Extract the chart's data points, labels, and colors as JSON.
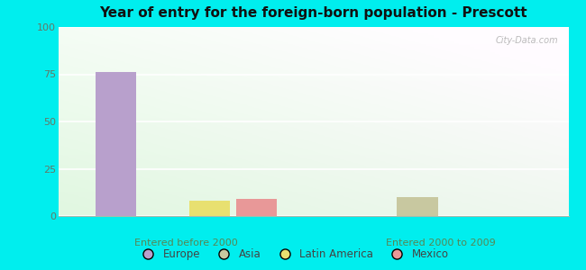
{
  "title": "Year of entry for the foreign-born population - Prescott",
  "groups": [
    "Entered before 2000",
    "Entered 2000 to 2009"
  ],
  "categories": [
    "Europe",
    "Asia",
    "Latin America",
    "Mexico"
  ],
  "colors": [
    "#b8a0cc",
    "#c8c8a0",
    "#e8e070",
    "#e89898"
  ],
  "values": {
    "Entered before 2000": [
      76,
      0,
      8,
      9
    ],
    "Entered 2000 to 2009": [
      0,
      10,
      0,
      0
    ]
  },
  "ylim": [
    0,
    100
  ],
  "yticks": [
    0,
    25,
    50,
    75,
    100
  ],
  "outer_bg": "#00eeee",
  "plot_bg_left": "#c8e8c0",
  "plot_bg_right": "#e8f8e8",
  "watermark": "City-Data.com",
  "bar_width": 0.08,
  "group_centers": [
    0.25,
    0.75
  ]
}
